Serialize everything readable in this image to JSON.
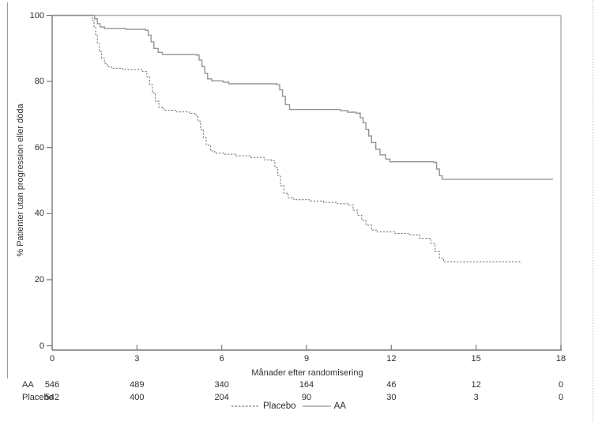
{
  "chart_data": {
    "type": "line",
    "subtype": "kaplan-meier-step",
    "title": "",
    "xlabel": "Månader efter randomisering",
    "ylabel": "% Patienter utan progression eller döda",
    "xlim": [
      0,
      18
    ],
    "ylim": [
      0,
      100
    ],
    "x_ticks": [
      0,
      3,
      6,
      9,
      12,
      15,
      18
    ],
    "y_ticks": [
      0,
      20,
      40,
      60,
      80,
      100
    ],
    "grid": false,
    "legend_position": "bottom-center",
    "colors": {
      "aa_line": "#949494",
      "placebo_line": "#787878",
      "axis": "#7a7a7a",
      "frame": "#b5b5b5",
      "text": "#2f2f2f"
    },
    "series": [
      {
        "name": "Placebo",
        "style": "dashed",
        "color": "#787878",
        "points": [
          [
            0,
            100
          ],
          [
            1.35,
            100
          ],
          [
            1.42,
            98.5
          ],
          [
            1.48,
            96.5
          ],
          [
            1.54,
            94
          ],
          [
            1.6,
            91.5
          ],
          [
            1.67,
            89
          ],
          [
            1.75,
            87
          ],
          [
            1.85,
            85.5
          ],
          [
            1.95,
            84.5
          ],
          [
            2.1,
            84
          ],
          [
            2.5,
            83.6
          ],
          [
            3.2,
            83
          ],
          [
            3.35,
            81.5
          ],
          [
            3.45,
            79
          ],
          [
            3.55,
            76.5
          ],
          [
            3.65,
            74
          ],
          [
            3.78,
            72.2
          ],
          [
            3.95,
            71.3
          ],
          [
            4.4,
            70.8
          ],
          [
            4.85,
            70.3
          ],
          [
            5.05,
            69.8
          ],
          [
            5.15,
            68
          ],
          [
            5.25,
            65.5
          ],
          [
            5.35,
            63
          ],
          [
            5.45,
            60.8
          ],
          [
            5.6,
            59
          ],
          [
            5.75,
            58.3
          ],
          [
            6.1,
            58
          ],
          [
            6.5,
            57.5
          ],
          [
            7.0,
            57
          ],
          [
            7.5,
            56.3
          ],
          [
            7.75,
            56
          ],
          [
            7.88,
            54
          ],
          [
            7.98,
            51.5
          ],
          [
            8.08,
            48.5
          ],
          [
            8.2,
            46.2
          ],
          [
            8.35,
            44.8
          ],
          [
            8.55,
            44.2
          ],
          [
            9.1,
            43.8
          ],
          [
            9.6,
            43.4
          ],
          [
            10.1,
            43
          ],
          [
            10.5,
            42.6
          ],
          [
            10.65,
            41
          ],
          [
            10.8,
            39.5
          ],
          [
            10.95,
            38
          ],
          [
            11.1,
            36.5
          ],
          [
            11.3,
            35
          ],
          [
            11.5,
            34.5
          ],
          [
            12.1,
            34
          ],
          [
            12.6,
            33.6
          ],
          [
            13.0,
            32.5
          ],
          [
            13.4,
            31
          ],
          [
            13.55,
            28.5
          ],
          [
            13.7,
            26.5
          ],
          [
            13.85,
            25.4
          ],
          [
            16.6,
            25.2
          ]
        ]
      },
      {
        "name": "AA",
        "style": "solid",
        "color": "#949494",
        "points": [
          [
            0,
            100
          ],
          [
            1.4,
            100
          ],
          [
            1.5,
            99
          ],
          [
            1.6,
            97.5
          ],
          [
            1.7,
            96.5
          ],
          [
            1.85,
            96
          ],
          [
            2.6,
            95.8
          ],
          [
            3.3,
            95.5
          ],
          [
            3.4,
            94
          ],
          [
            3.5,
            92
          ],
          [
            3.6,
            90
          ],
          [
            3.75,
            88.8
          ],
          [
            3.9,
            88.2
          ],
          [
            5.1,
            88
          ],
          [
            5.2,
            86.5
          ],
          [
            5.3,
            84.5
          ],
          [
            5.4,
            82.5
          ],
          [
            5.5,
            80.8
          ],
          [
            5.65,
            80.2
          ],
          [
            6.05,
            79.8
          ],
          [
            6.25,
            79.3
          ],
          [
            7.95,
            79
          ],
          [
            8.05,
            77.5
          ],
          [
            8.15,
            75.5
          ],
          [
            8.25,
            73
          ],
          [
            8.4,
            71.5
          ],
          [
            10.2,
            71.2
          ],
          [
            10.45,
            70.7
          ],
          [
            10.75,
            70.4
          ],
          [
            10.9,
            69
          ],
          [
            11.0,
            67.5
          ],
          [
            11.1,
            65.5
          ],
          [
            11.2,
            63.5
          ],
          [
            11.3,
            61.5
          ],
          [
            11.45,
            59.5
          ],
          [
            11.6,
            57.8
          ],
          [
            11.8,
            56.5
          ],
          [
            11.95,
            55.7
          ],
          [
            13.5,
            55.5
          ],
          [
            13.6,
            53.5
          ],
          [
            13.7,
            51.5
          ],
          [
            13.8,
            50.4
          ],
          [
            17.7,
            50.3
          ]
        ]
      }
    ],
    "risk_table": {
      "x_values": [
        0,
        3,
        6,
        9,
        12,
        15,
        18
      ],
      "rows": [
        {
          "label": "AA",
          "counts": [
            "546",
            "489",
            "340",
            "164",
            "46",
            "12",
            "0"
          ]
        },
        {
          "label": "Placebo",
          "counts": [
            "542",
            "400",
            "204",
            "90",
            "30",
            "3",
            "0"
          ]
        }
      ]
    },
    "legend": [
      {
        "label": "Placebo",
        "style": "dashed"
      },
      {
        "label": "AA",
        "style": "solid"
      }
    ]
  }
}
